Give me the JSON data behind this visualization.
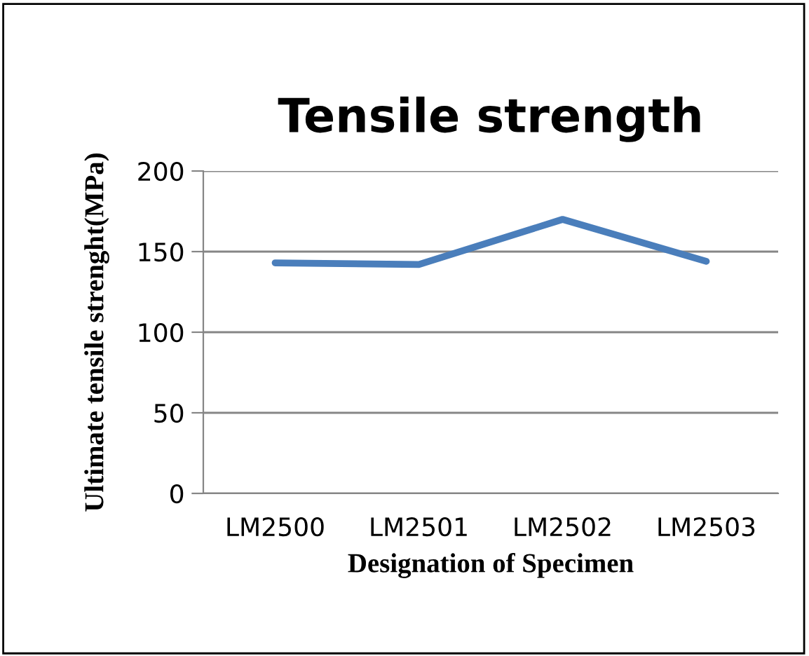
{
  "chart_data": {
    "type": "line",
    "title": "Tensile strength",
    "xlabel": "Designation of Specimen",
    "ylabel": "Ultimate tensile strenght(MPa)",
    "categories": [
      "LM2500",
      "LM2501",
      "LM2502",
      "LM2503"
    ],
    "series": [
      {
        "color": "#4a7ebb",
        "values": [
          143,
          142,
          170,
          144
        ]
      }
    ],
    "ylim": [
      0,
      200
    ],
    "yticks": [
      0,
      50,
      100,
      150,
      200
    ],
    "grid": "y",
    "marker": "none",
    "line_style": "solid"
  }
}
